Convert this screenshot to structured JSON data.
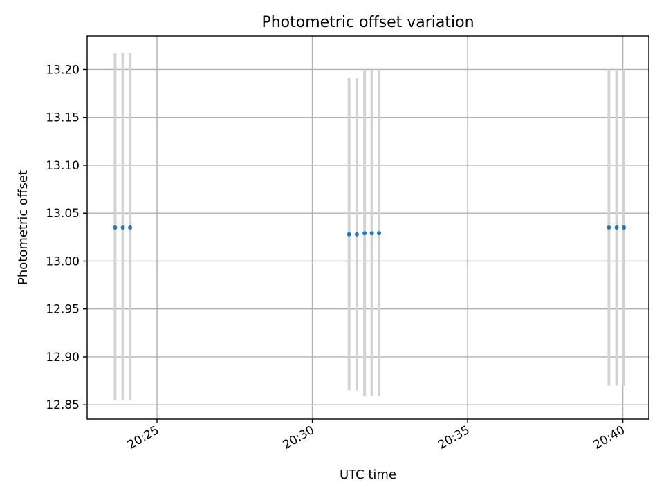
{
  "chart_data": {
    "type": "scatter",
    "title": "Photometric offset variation",
    "xlabel": "UTC time",
    "ylabel": "Photometric offset",
    "xlim": [
      "20:22:45",
      "20:40:50"
    ],
    "ylim": [
      12.835,
      13.235
    ],
    "x_ticks": [
      "20:25",
      "20:30",
      "20:35",
      "20:40"
    ],
    "y_ticks": [
      "12.85",
      "12.90",
      "12.95",
      "13.00",
      "13.05",
      "13.10",
      "13.15",
      "13.20"
    ],
    "grid": true,
    "series": [
      {
        "color": "#1f77b4",
        "errorbar_color": "#d3d3d3",
        "points": [
          {
            "x": "20:23:39",
            "y": 13.035,
            "ylow": 12.855,
            "yhigh": 13.217
          },
          {
            "x": "20:23:54",
            "y": 13.035,
            "ylow": 12.855,
            "yhigh": 13.217
          },
          {
            "x": "20:24:08",
            "y": 13.035,
            "ylow": 12.855,
            "yhigh": 13.217
          },
          {
            "x": "20:31:11",
            "y": 13.028,
            "ylow": 12.865,
            "yhigh": 13.191
          },
          {
            "x": "20:31:26",
            "y": 13.028,
            "ylow": 12.865,
            "yhigh": 13.191
          },
          {
            "x": "20:31:41",
            "y": 13.029,
            "ylow": 12.859,
            "yhigh": 13.2
          },
          {
            "x": "20:31:55",
            "y": 13.029,
            "ylow": 12.859,
            "yhigh": 13.2
          },
          {
            "x": "20:32:09",
            "y": 13.029,
            "ylow": 12.859,
            "yhigh": 13.2
          },
          {
            "x": "20:39:33",
            "y": 13.035,
            "ylow": 12.87,
            "yhigh": 13.2
          },
          {
            "x": "20:39:48",
            "y": 13.035,
            "ylow": 12.87,
            "yhigh": 13.2
          },
          {
            "x": "20:40:02",
            "y": 13.035,
            "ylow": 12.87,
            "yhigh": 13.2
          }
        ]
      }
    ]
  }
}
